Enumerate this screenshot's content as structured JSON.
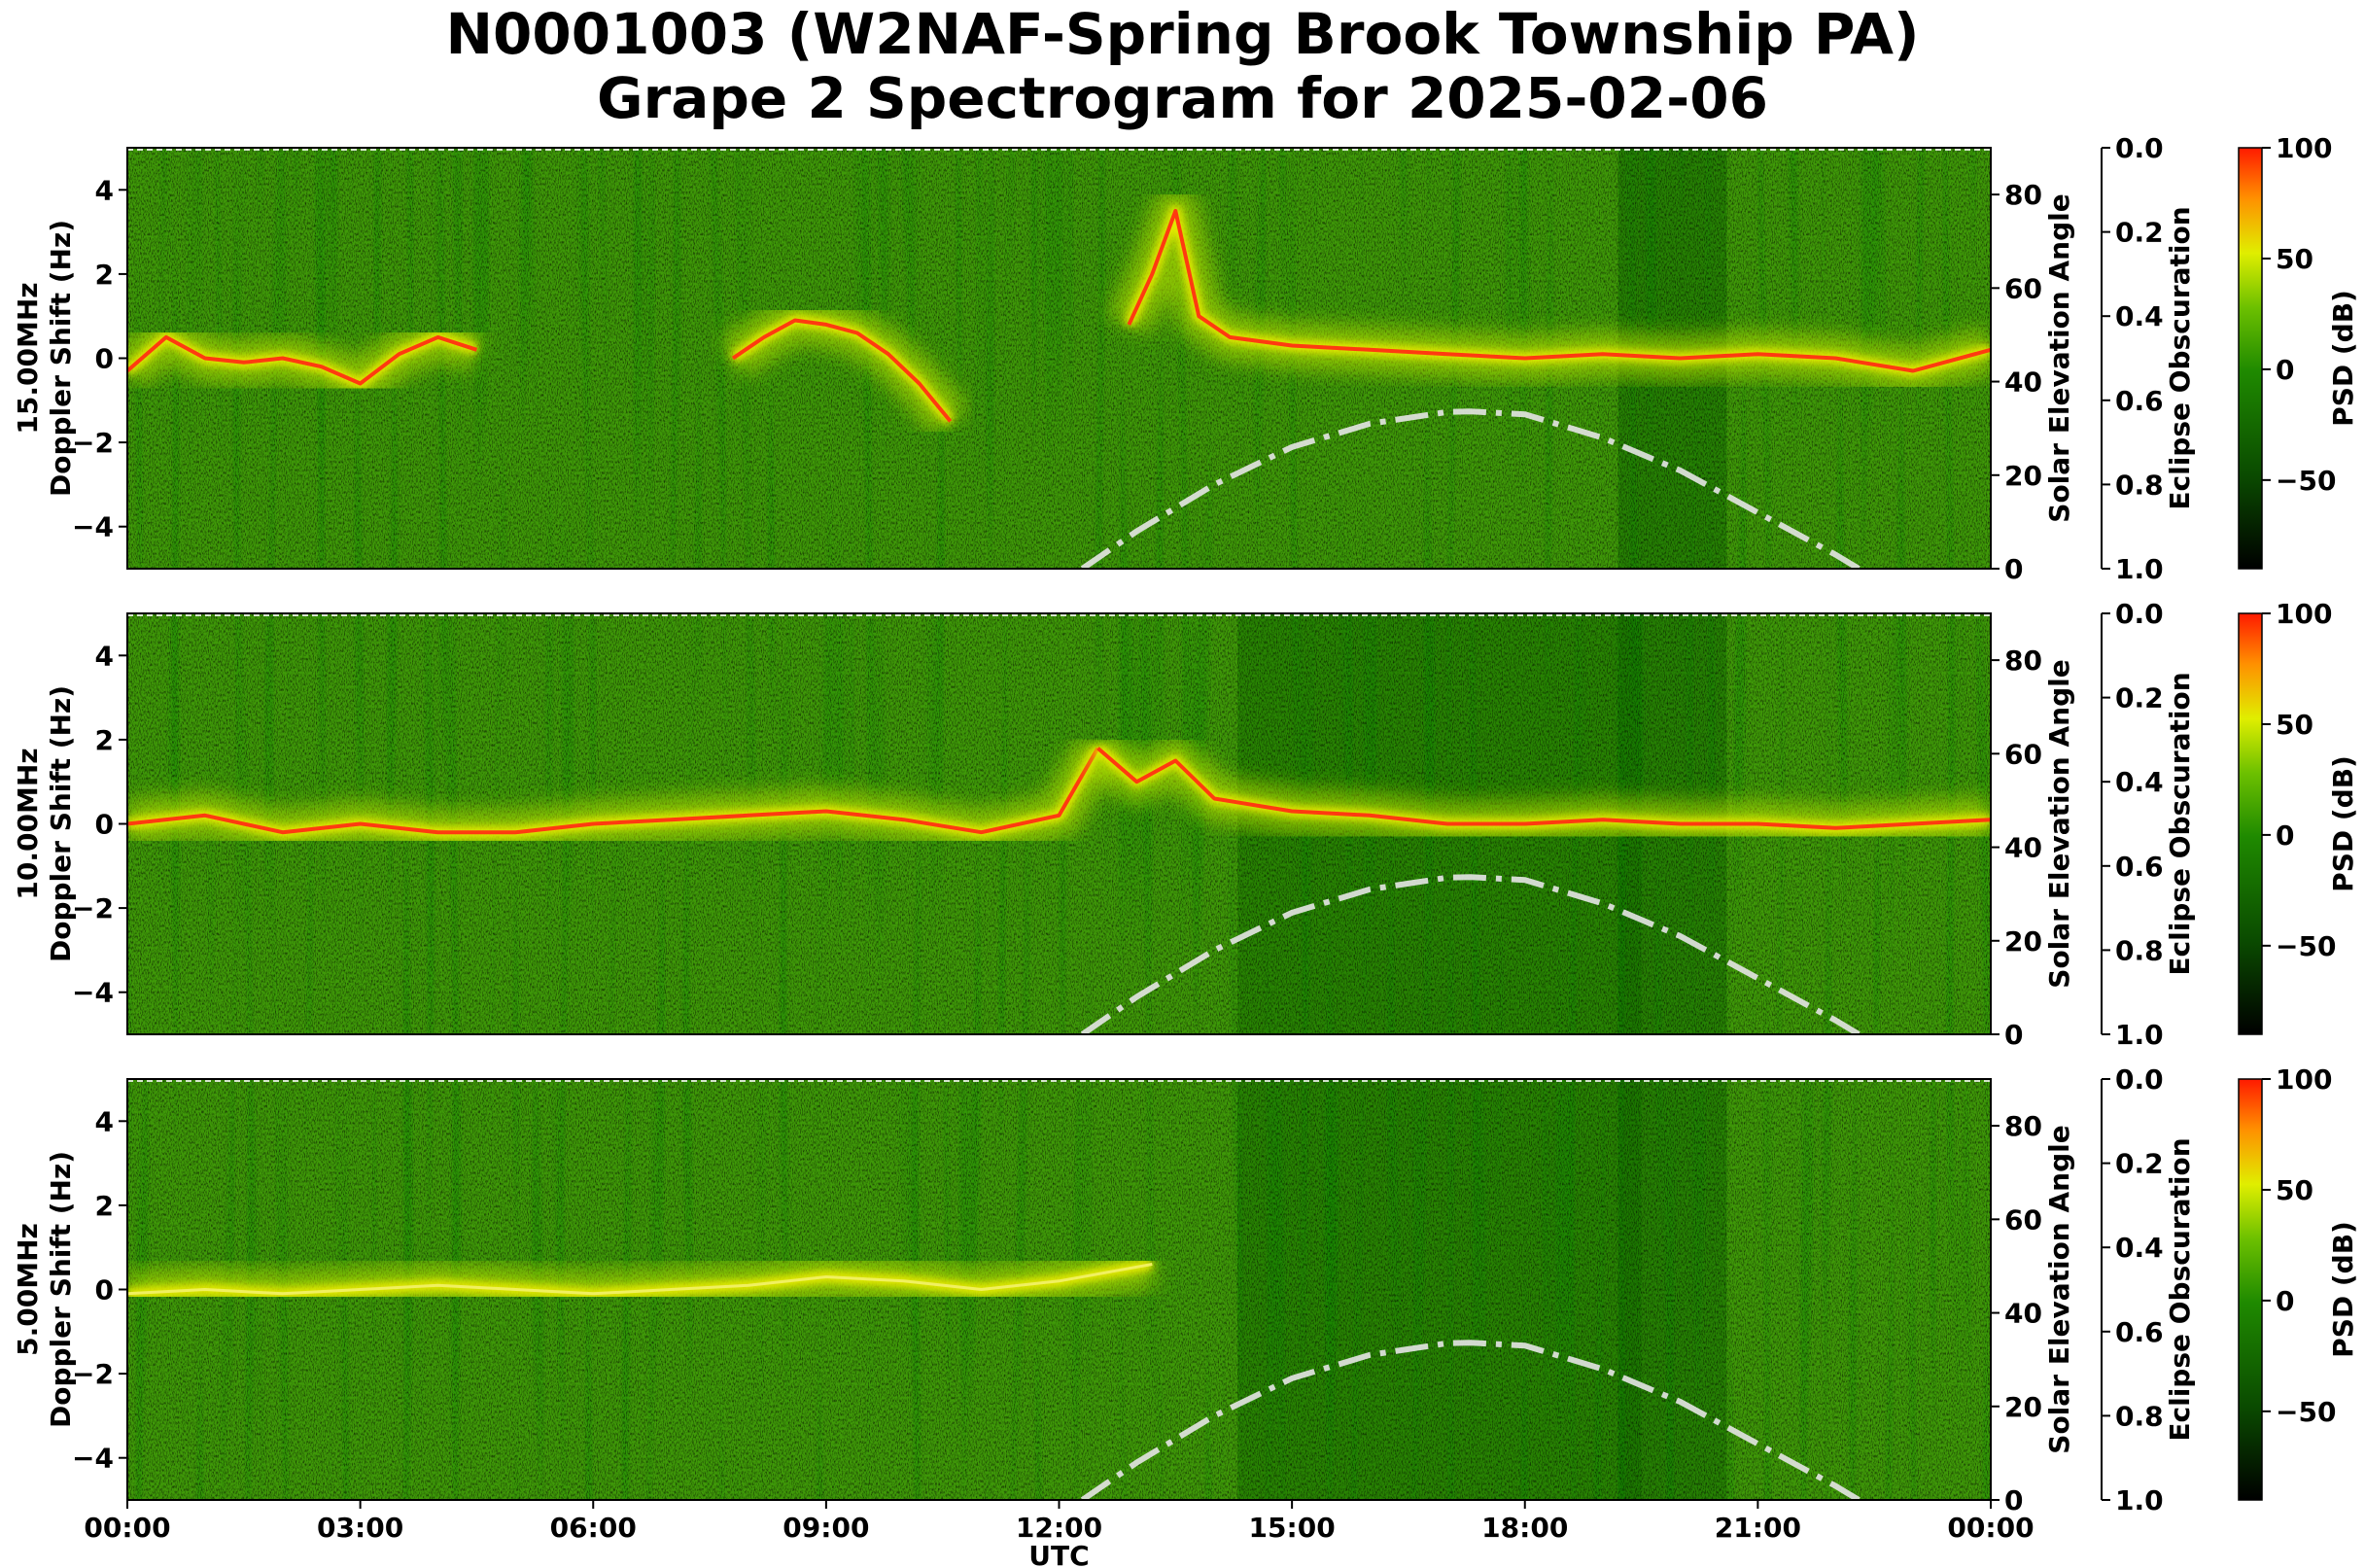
{
  "title": {
    "line1": "N0001003 (W2NAF-Spring Brook Township PA)",
    "line2": "Grape 2 Spectrogram for 2025-02-06"
  },
  "chart_data": [
    {
      "type": "heatmap",
      "panel": "15.00MHz",
      "ylabel_line1": "15.00MHz",
      "ylabel_line2": "Doppler Shift (Hz)",
      "y_ticks": [
        4,
        2,
        0,
        -2,
        -4
      ],
      "ylim": [
        -5,
        5
      ],
      "right_axis_label": "Solar Elevation Angle",
      "right_axis_ticks": [
        0,
        20,
        40,
        60,
        80
      ],
      "right_axis_range": [
        0,
        90
      ],
      "eclipse_label": "Eclipse Obscuration",
      "eclipse_ticks": [
        "0.0",
        "0.2",
        "0.4",
        "0.6",
        "0.8",
        "1.0"
      ],
      "colorbar_label": "PSD (dB)",
      "colorbar_ticks": [
        100,
        50,
        0,
        -50
      ],
      "colorbar_range": [
        -90,
        100
      ],
      "traces": [
        {
          "x": [
            0,
            0.5,
            1,
            1.5,
            2,
            2.5,
            3,
            3.5,
            4,
            4.5
          ],
          "y": [
            -0.3,
            0.5,
            0.0,
            -0.1,
            0.0,
            -0.2,
            -0.6,
            0.1,
            0.5,
            0.2
          ]
        },
        {
          "x": [
            7.8,
            8.2,
            8.6,
            9,
            9.4,
            9.8,
            10.2,
            10.6
          ],
          "y": [
            0.0,
            0.5,
            0.9,
            0.8,
            0.6,
            0.1,
            -0.6,
            -1.5
          ]
        },
        {
          "x": [
            12.9,
            13.2,
            13.5,
            13.8,
            14.2,
            15,
            16,
            17,
            18,
            19,
            20,
            21,
            22,
            23,
            24
          ],
          "y": [
            0.8,
            2.0,
            3.5,
            1.0,
            0.5,
            0.3,
            0.2,
            0.1,
            0.0,
            0.1,
            0.0,
            0.1,
            0.0,
            -0.3,
            0.2
          ]
        }
      ]
    },
    {
      "type": "heatmap",
      "panel": "10.00MHz",
      "ylabel_line1": "10.00MHz",
      "ylabel_line2": "Doppler Shift (Hz)",
      "y_ticks": [
        4,
        2,
        0,
        -2,
        -4
      ],
      "ylim": [
        -5,
        5
      ],
      "right_axis_label": "Solar Elevation Angle",
      "right_axis_ticks": [
        0,
        20,
        40,
        60,
        80
      ],
      "right_axis_range": [
        0,
        90
      ],
      "eclipse_label": "Eclipse Obscuration",
      "eclipse_ticks": [
        "0.0",
        "0.2",
        "0.4",
        "0.6",
        "0.8",
        "1.0"
      ],
      "colorbar_label": "PSD (dB)",
      "colorbar_ticks": [
        100,
        50,
        0,
        -50
      ],
      "colorbar_range": [
        -90,
        100
      ],
      "traces": [
        {
          "x": [
            0,
            1,
            2,
            3,
            4,
            5,
            6,
            7,
            8,
            9,
            10,
            11,
            12,
            12.5
          ],
          "y": [
            0.0,
            0.2,
            -0.2,
            0.0,
            -0.2,
            -0.2,
            0.0,
            0.1,
            0.2,
            0.3,
            0.1,
            -0.2,
            0.2,
            1.8
          ]
        },
        {
          "x": [
            12.5,
            13,
            13.5,
            14,
            15,
            16,
            17,
            18,
            19,
            20,
            21,
            22,
            23,
            24
          ],
          "y": [
            1.8,
            1.0,
            1.5,
            0.6,
            0.3,
            0.2,
            0.0,
            0.0,
            0.1,
            0.0,
            0.0,
            -0.1,
            0.0,
            0.1
          ]
        }
      ]
    },
    {
      "type": "heatmap",
      "panel": "5.00MHz",
      "ylabel_line1": "5.00MHz",
      "ylabel_line2": "Doppler Shift (Hz)",
      "y_ticks": [
        4,
        2,
        0,
        -2,
        -4
      ],
      "ylim": [
        -5,
        5
      ],
      "right_axis_label": "Solar Elevation Angle",
      "right_axis_ticks": [
        0,
        20,
        40,
        60,
        80
      ],
      "right_axis_range": [
        0,
        90
      ],
      "eclipse_label": "Eclipse Obscuration",
      "eclipse_ticks": [
        "0.0",
        "0.2",
        "0.4",
        "0.6",
        "0.8",
        "1.0"
      ],
      "colorbar_label": "PSD (dB)",
      "colorbar_ticks": [
        100,
        50,
        0,
        -50
      ],
      "colorbar_range": [
        -90,
        100
      ],
      "xlabel": "UTC",
      "x_ticks": [
        "00:00",
        "03:00",
        "06:00",
        "09:00",
        "12:00",
        "15:00",
        "18:00",
        "21:00",
        "00:00"
      ],
      "traces": [
        {
          "x": [
            0,
            1,
            2,
            3,
            4,
            5,
            6,
            7,
            8,
            9,
            10,
            11,
            12,
            13.2
          ],
          "y": [
            -0.1,
            0.0,
            -0.1,
            0.0,
            0.1,
            0.0,
            -0.1,
            0.0,
            0.1,
            0.3,
            0.2,
            0.0,
            0.2,
            0.6
          ]
        }
      ]
    }
  ],
  "solar_elevation_curve": {
    "x": [
      12.3,
      13,
      14,
      15,
      16,
      17,
      17.3,
      18,
      19,
      20,
      21,
      22,
      22.3
    ],
    "y": [
      0,
      8,
      18,
      26,
      31,
      33.5,
      33.6,
      33,
      28,
      21,
      12,
      3,
      0
    ]
  },
  "colors": {
    "low": "#003300",
    "mid_low": "#1a7a00",
    "mid": "#6cc000",
    "mid_high": "#e8f000",
    "high": "#ff2000",
    "curve": "#e6e6e6"
  }
}
